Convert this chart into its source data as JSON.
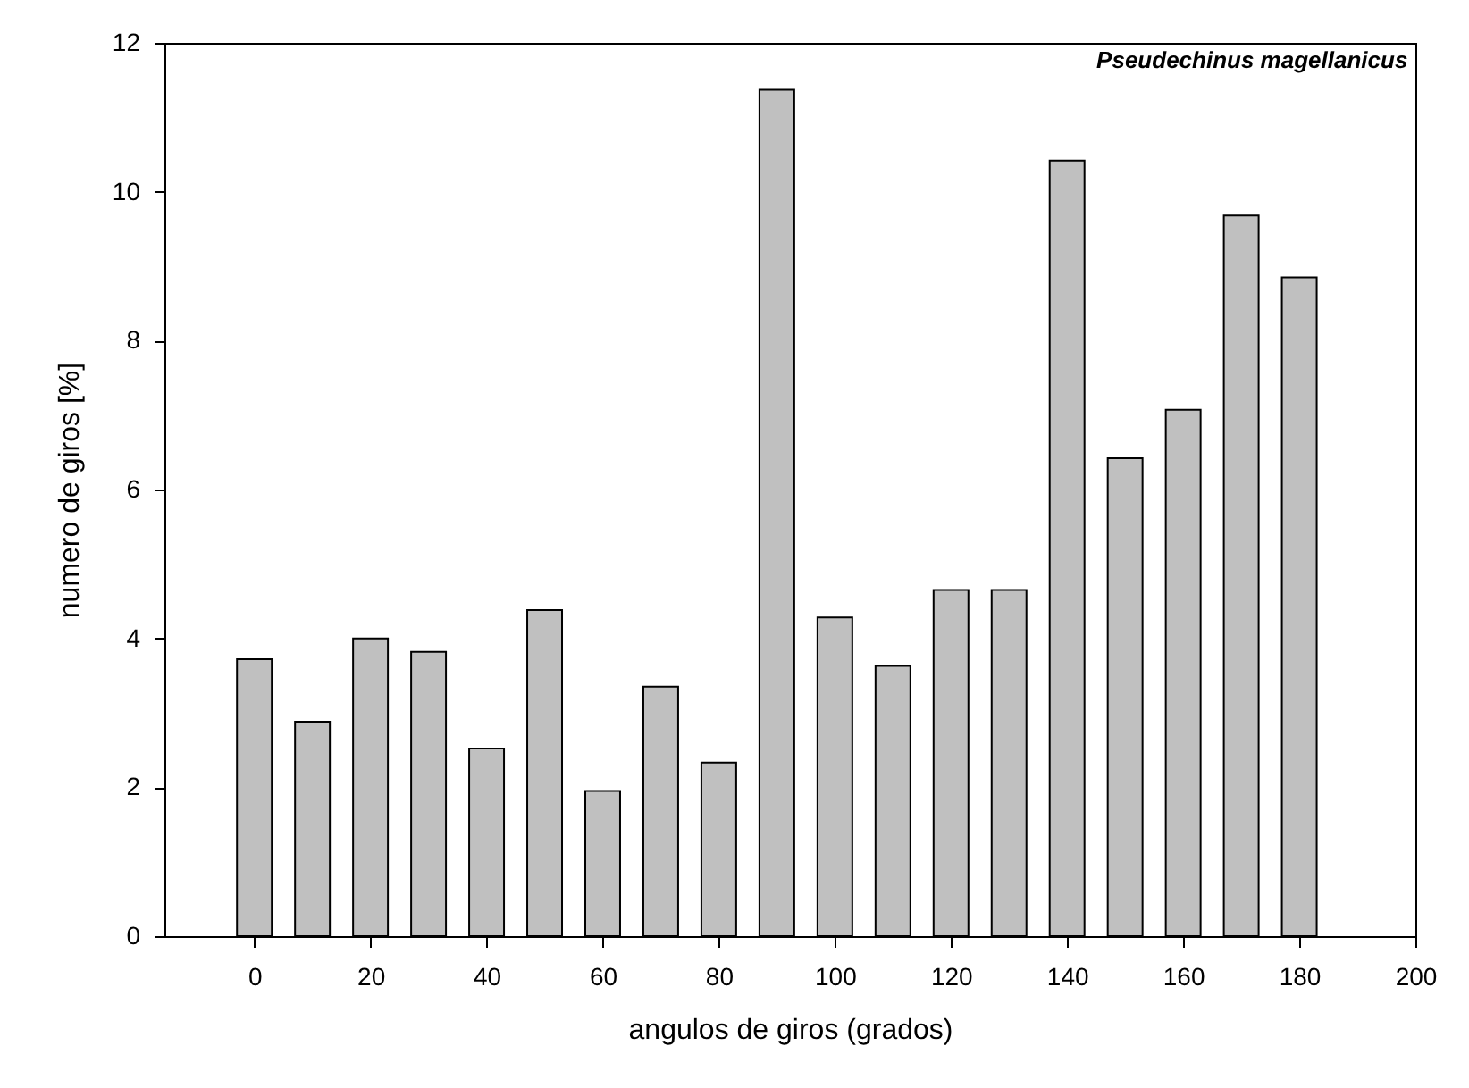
{
  "chart_data": {
    "type": "bar",
    "title": "Pseudechinus magellanicus",
    "xlabel": "angulos de giros (grados)",
    "ylabel": "numero de giros [%]",
    "x": [
      0,
      10,
      20,
      30,
      40,
      50,
      60,
      70,
      80,
      90,
      100,
      110,
      120,
      130,
      140,
      150,
      160,
      170,
      180
    ],
    "values": [
      3.72,
      2.88,
      4.0,
      3.82,
      2.52,
      4.38,
      1.95,
      3.35,
      2.33,
      11.37,
      4.28,
      3.63,
      4.65,
      4.65,
      10.42,
      6.42,
      7.07,
      9.68,
      8.85
    ],
    "color": "#c0c0c0",
    "xlim": [
      -15.5,
      200
    ],
    "xticks": [
      0,
      20,
      40,
      60,
      80,
      100,
      120,
      140,
      160,
      180,
      200
    ],
    "ylim": [
      0,
      12
    ],
    "yticks": [
      0,
      2,
      4,
      6,
      8,
      10,
      12
    ],
    "grid": false
  }
}
